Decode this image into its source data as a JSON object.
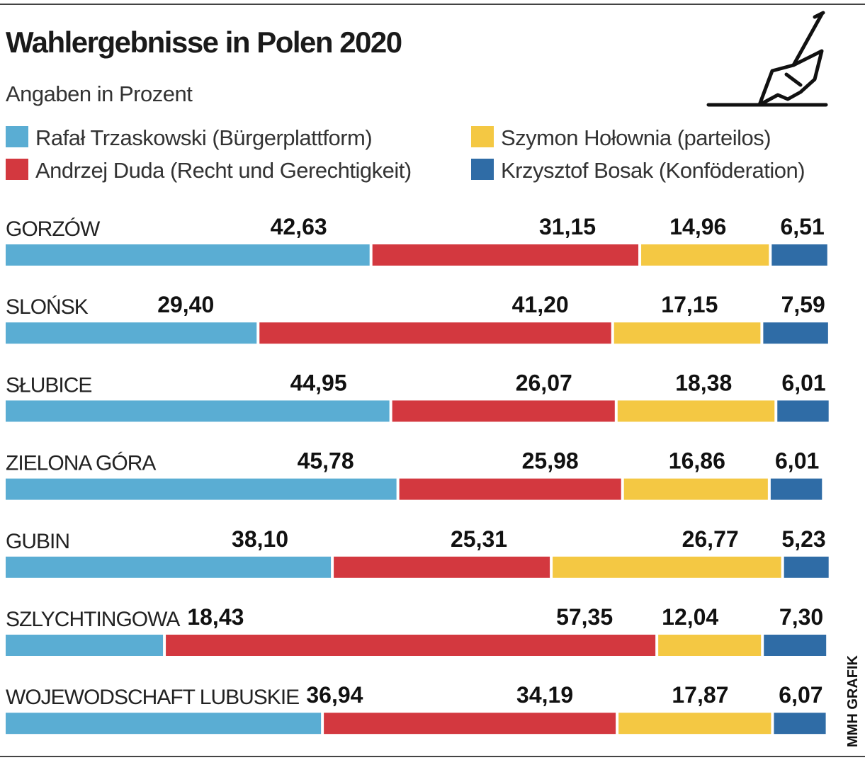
{
  "chart_data": {
    "type": "stacked-bar",
    "orientation": "horizontal",
    "title": "Wahlergebnisse in Polen 2020",
    "subtitle": "Angaben in Prozent",
    "credit": "MMH GRAFIK",
    "categories": [
      "GORZÓW",
      "SLOŃSK",
      "SŁUBICE",
      "ZIELONA GÓRA",
      "GUBIN",
      "SZLYCHTINGOWA",
      "WOJEWODSCHAFT LUBUSKIE"
    ],
    "series": [
      {
        "name": "Rafał Trzaskowski  (Bürgerplattform)",
        "color": "#5aadd3",
        "values": [
          42.63,
          29.4,
          44.95,
          45.78,
          38.1,
          18.43,
          36.94
        ],
        "value_labels": [
          "42,63",
          "29,40",
          "44,95",
          "45,78",
          "38,10",
          "18,43",
          "36,94"
        ]
      },
      {
        "name": "Andrzej Duda (Recht und Gerechtigkeit)",
        "color": "#d3383f",
        "values": [
          31.15,
          41.2,
          26.07,
          25.98,
          25.31,
          57.35,
          34.19
        ],
        "value_labels": [
          "31,15",
          "41,20",
          "26,07",
          "25,98",
          "25,31",
          "57,35",
          "34,19"
        ]
      },
      {
        "name": "Szymon Hołownia  (parteilos)",
        "color": "#f4c843",
        "values": [
          14.96,
          17.15,
          18.38,
          16.86,
          26.77,
          12.04,
          17.87
        ],
        "value_labels": [
          "14,96",
          "17,15",
          "18,38",
          "16,86",
          "26,77",
          "12,04",
          "17,87"
        ]
      },
      {
        "name": "Krzysztof Bosak (Konföderation)",
        "color": "#2f6ca6",
        "values": [
          6.51,
          7.59,
          6.01,
          6.01,
          5.23,
          7.3,
          6.07
        ],
        "value_labels": [
          "6,51",
          "7,59",
          "6,01",
          "6,01",
          "5,23",
          "7,30",
          "6,07"
        ]
      }
    ]
  }
}
